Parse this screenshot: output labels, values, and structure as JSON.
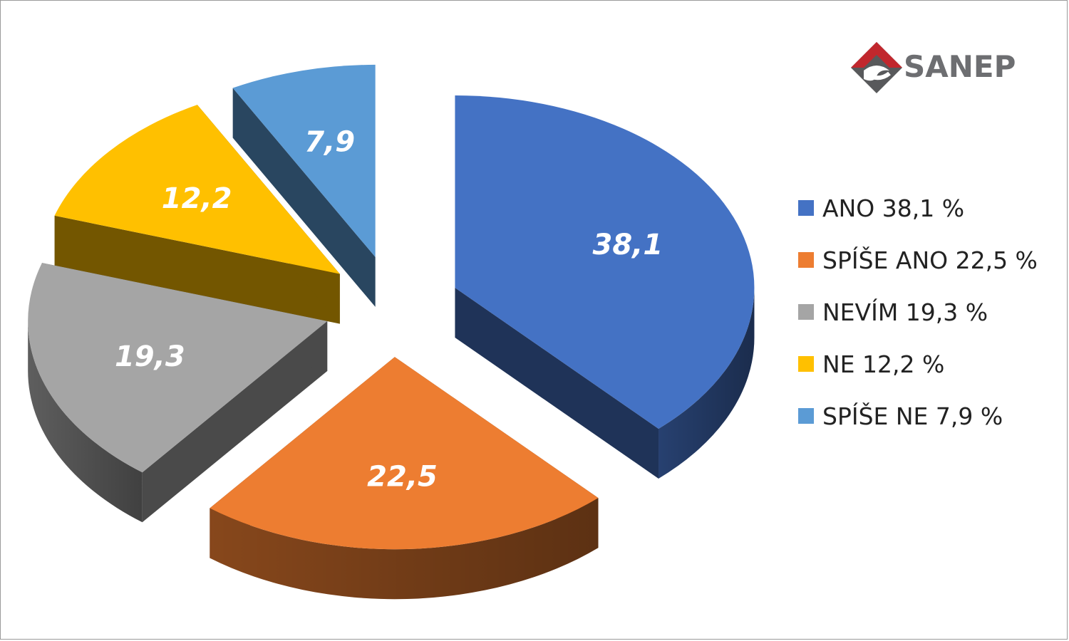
{
  "logo": {
    "text": "SANEP",
    "icon": "sanep-diamond-logo",
    "colors": [
      "#c1272d",
      "#58595b"
    ]
  },
  "chart_data": {
    "type": "pie",
    "style": "3d-exploded",
    "categories": [
      "ANO",
      "SPÍŠE ANO",
      "NEVÍM",
      "NE",
      "SPÍŠE NE"
    ],
    "values": [
      38.1,
      22.5,
      19.3,
      12.2,
      7.9
    ],
    "data_labels": [
      "38,1",
      "22,5",
      "19,3",
      "12,2",
      "7,9"
    ],
    "colors": [
      "#4472c4",
      "#ed7d31",
      "#a5a5a5",
      "#ffc000",
      "#5b9bd5"
    ],
    "legend": {
      "position": "right",
      "entries": [
        "ANO 38,1 %",
        "SPÍŠE ANO 22,5 %",
        "NEVÍM 19,3 %",
        "NE 12,2 %",
        "SPÍŠE NE 7,9 %"
      ]
    }
  }
}
